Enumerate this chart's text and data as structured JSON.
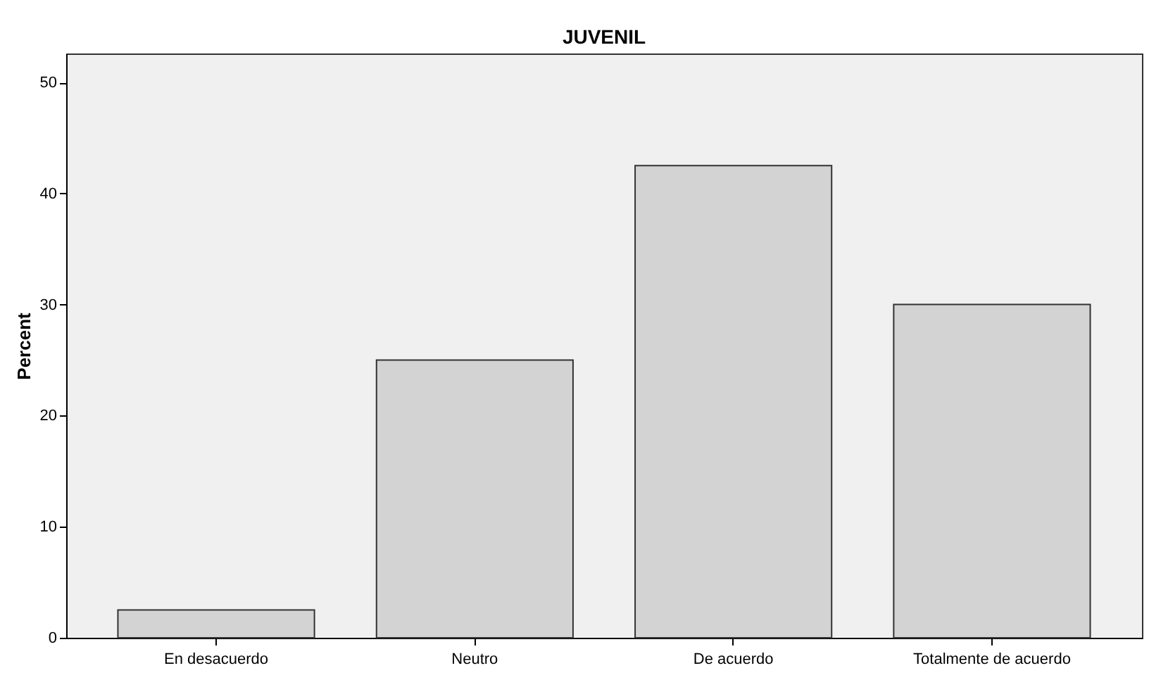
{
  "chart_data": {
    "type": "bar",
    "title": "JUVENIL",
    "ylabel": "Percent",
    "categories": [
      "En desacuerdo",
      "Neutro",
      "De acuerdo",
      "Totalmente de acuerdo"
    ],
    "values": [
      2.5,
      25,
      42.5,
      30
    ],
    "color": "#d3d3d3",
    "ylim": [
      0,
      52.6
    ],
    "yticks": [
      0,
      10,
      20,
      30,
      40,
      50
    ],
    "grid": false
  }
}
